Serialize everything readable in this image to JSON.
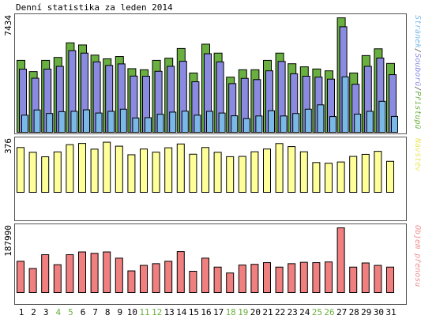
{
  "chart_data": {
    "type": "bar",
    "title": "Denní statistika za leden 2014",
    "categories": [
      "1",
      "2",
      "3",
      "4",
      "5",
      "6",
      "7",
      "8",
      "9",
      "10",
      "11",
      "12",
      "13",
      "14",
      "15",
      "16",
      "17",
      "18",
      "19",
      "20",
      "21",
      "22",
      "23",
      "24",
      "25",
      "26",
      "27",
      "28",
      "29",
      "30",
      "31"
    ],
    "weekend_days": [
      "4",
      "5",
      "11",
      "12",
      "18",
      "19",
      "25",
      "26"
    ],
    "panels": [
      {
        "name": "top",
        "ymax_label": "7434",
        "legend_parts": [
          {
            "text": "Stránek",
            "color": "#7ab8e8"
          },
          {
            "text": "/",
            "color": "#555555"
          },
          {
            "text": "Souborů",
            "color": "#8a8ae0"
          },
          {
            "text": "/",
            "color": "#555555"
          },
          {
            "text": "Přístupů",
            "color": "#6ab040"
          }
        ],
        "ymax": 7434,
        "series": [
          {
            "name": "Přístupů",
            "color": "#6ab040",
            "values": [
              4670,
              3940,
              4670,
              4860,
              5810,
              5670,
              5010,
              4770,
              4920,
              4130,
              4060,
              4670,
              4810,
              5440,
              3850,
              5720,
              5140,
              3580,
              4060,
              4060,
              4670,
              5140,
              4450,
              4250,
              4110,
              3990,
              7430,
              3850,
              4980,
              5420,
              4470
            ]
          },
          {
            "name": "Souborů",
            "color": "#8a8ae0",
            "values": [
              4100,
              3510,
              4100,
              4280,
              5300,
              5140,
              4570,
              4340,
              4440,
              3650,
              3640,
              3960,
              4280,
              4610,
              3280,
              5100,
              4570,
              3160,
              3500,
              3420,
              3990,
              4600,
              3800,
              3640,
              3580,
              3450,
              6850,
              3120,
              4280,
              4820,
              3740
            ]
          },
          {
            "name": "Stránek",
            "color": "#7ab8e8",
            "values": [
              1110,
              1450,
              1220,
              1340,
              1360,
              1460,
              1250,
              1360,
              1500,
              930,
              950,
              1170,
              1310,
              1370,
              1110,
              1360,
              1250,
              1070,
              890,
              1060,
              1400,
              1060,
              1220,
              1500,
              1780,
              1020,
              3600,
              1180,
              1360,
              2010,
              1030
            ]
          }
        ]
      },
      {
        "name": "middle",
        "ymax_label": "376",
        "legend_parts": [
          {
            "text": "Návštěv",
            "color": "#e8e860"
          }
        ],
        "ymax": 376,
        "series": [
          {
            "name": "Návštěv",
            "color": "#ffff99",
            "values": [
              328,
              293,
              260,
              296,
              349,
              358,
              316,
              367,
              338,
              275,
              317,
              294,
              326,
              354,
              279,
              328,
              293,
              261,
              263,
              297,
              317,
              357,
              335,
              297,
              218,
              213,
              222,
              263,
              278,
              300,
              227
            ]
          }
        ]
      },
      {
        "name": "bottom",
        "ymax_label": "187990",
        "legend_parts": [
          {
            "text": "Objem přenosu",
            "color": "#f09090"
          }
        ],
        "ymax": 187990,
        "series": [
          {
            "name": "Objem přenosu",
            "color": "#f08080",
            "values": [
              91000,
              70000,
              110000,
              81000,
              110000,
              118000,
              114000,
              118000,
              100000,
              63000,
              79000,
              84000,
              91000,
              119000,
              62000,
              100000,
              74000,
              57000,
              80000,
              82000,
              87000,
              74000,
              84000,
              88000,
              87000,
              89000,
              187990,
              74000,
              86000,
              79000,
              74000
            ]
          }
        ]
      }
    ]
  },
  "colors": {
    "frame": "#555555",
    "bar_border": "#000000",
    "weekday_label": "#000000",
    "weekend_label": "#6ab040"
  }
}
